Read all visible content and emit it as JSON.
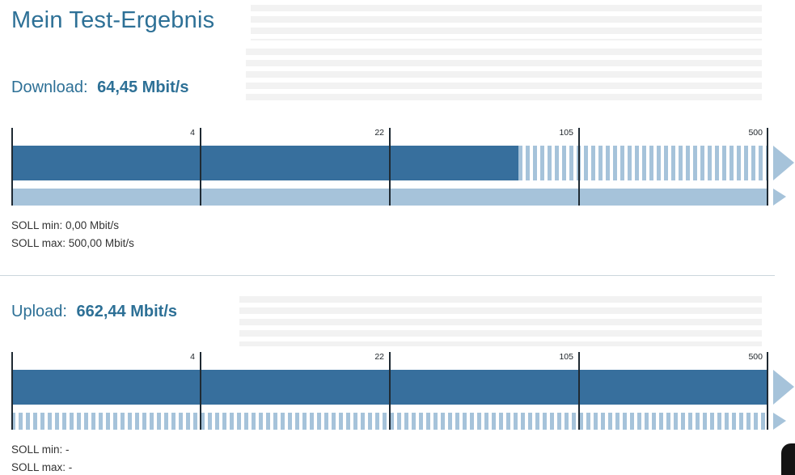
{
  "page": {
    "title": "Mein Test-Ergebnis"
  },
  "download": {
    "heading_label": "Download:",
    "heading_value": "64,45 Mbit/s",
    "soll_min": "SOLL min: 0,00 Mbit/s",
    "soll_max": "SOLL max: 500,00 Mbit/s",
    "gauge": {
      "ticks": [
        "4",
        "22",
        "105",
        "500"
      ],
      "measured_percent": 67
    }
  },
  "upload": {
    "heading_label": "Upload:",
    "heading_value": "662,44 Mbit/s",
    "soll_min": "SOLL min: -",
    "soll_max": "SOLL max: -",
    "gauge": {
      "ticks": [
        "4",
        "22",
        "105",
        "500"
      ],
      "measured_percent": 100
    }
  },
  "colors": {
    "heading_blue": "#2d7096",
    "bar_dark_blue": "#376f9d",
    "bar_light_blue": "#a6c3da",
    "tick_line": "#1f2a33"
  },
  "chart_data": [
    {
      "type": "bar",
      "title": "Download",
      "unit": "Mbit/s",
      "measured_value": 64.45,
      "scale": "logarithmic",
      "scale_ticks": [
        4,
        22,
        105,
        500
      ],
      "soll_min": 0.0,
      "soll_max": 500.0,
      "bars": [
        {
          "name": "measured",
          "value": 64.45,
          "render": "solid dark blue to ~67%, striped light blue remainder"
        },
        {
          "name": "soll-range",
          "value": 500,
          "render": "solid light blue full width"
        }
      ],
      "legend_position": "none",
      "grid": false
    },
    {
      "type": "bar",
      "title": "Upload",
      "unit": "Mbit/s",
      "measured_value": 662.44,
      "scale": "logarithmic",
      "scale_ticks": [
        4,
        22,
        105,
        500
      ],
      "soll_min": null,
      "soll_max": null,
      "bars": [
        {
          "name": "measured",
          "value": 662.44,
          "render": "solid dark blue full width (exceeds scale max)"
        },
        {
          "name": "soll-range",
          "value": null,
          "render": "striped light blue full width"
        }
      ],
      "legend_position": "none",
      "grid": false
    }
  ]
}
